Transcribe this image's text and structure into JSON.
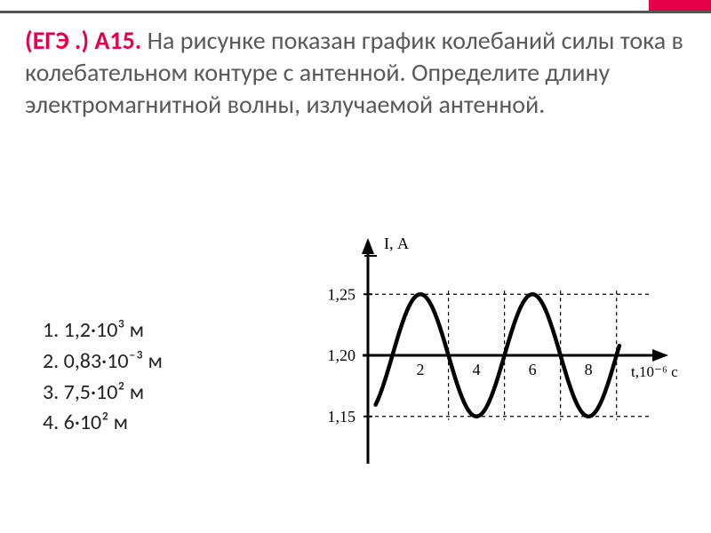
{
  "accent_color": "#e6004c",
  "underline_color": "#555555",
  "text_color": "#595959",
  "question": {
    "tag": "(ЕГЭ .) А15.",
    "body": "На рисунке показан график колебаний силы тока в колебательном контуре с антенной. Определите длину электромагнитной волны, излучаемой антенной."
  },
  "answers": [
    {
      "n": "1.",
      "text": "1,2·10³ м"
    },
    {
      "n": "2.",
      "text": "0,83·10⁻³ м"
    },
    {
      "n": "3.",
      "text": "7,5·10² м"
    },
    {
      "n": "4.",
      "text": "6·10² м"
    }
  ],
  "chart": {
    "type": "line",
    "y_label": "I, А",
    "x_label": "t,10⁻⁶ c",
    "y_ticks": [
      {
        "v": 1.25,
        "label": "1,25",
        "dashed": true
      },
      {
        "v": 1.2,
        "label": "1,20",
        "dashed": false
      },
      {
        "v": 1.15,
        "label": "1,15",
        "dashed": true
      }
    ],
    "x_ticks": [
      {
        "v": 2,
        "label": "2"
      },
      {
        "v": 4,
        "label": "4"
      },
      {
        "v": 6,
        "label": "6"
      },
      {
        "v": 8,
        "label": "8"
      }
    ],
    "xlim": [
      0,
      9.2
    ],
    "ylim": [
      1.12,
      1.28
    ],
    "axis_zero_y": 1.2,
    "amplitude": 0.05,
    "period_x": 4,
    "phase_shift_x": 1,
    "x_start": 0.4,
    "x_end": 9.1,
    "dashed_x": [
      3,
      5,
      7,
      9
    ],
    "stroke_color": "#000000",
    "stroke_width": 4.5,
    "dash_color": "#000000",
    "dash_pattern": "4 4",
    "bg": "#ffffff",
    "font_size_axis": 18,
    "font_family": "serif"
  }
}
